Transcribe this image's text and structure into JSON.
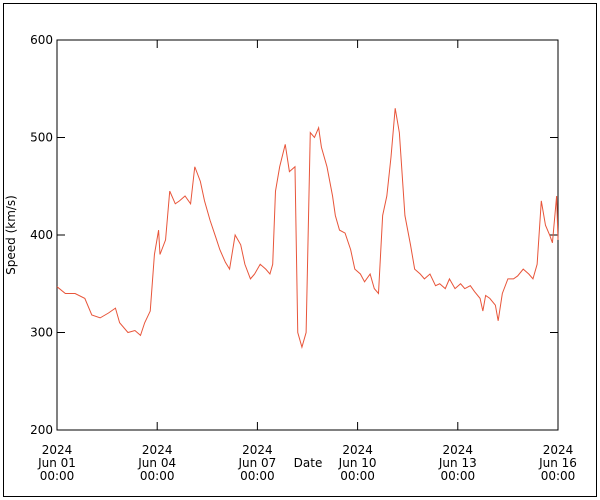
{
  "chart_data": {
    "type": "line",
    "xlabel": "Date",
    "ylabel": "Speed (km/s)",
    "xlim": [
      "2024-06-01T00:00",
      "2024-06-16T00:00"
    ],
    "xticks": [
      {
        "value": "2024-06-01T00:00",
        "label": [
          "2024",
          "Jun 01",
          "00:00"
        ]
      },
      {
        "value": "2024-06-04T00:00",
        "label": [
          "2024",
          "Jun 04",
          "00:00"
        ]
      },
      {
        "value": "2024-06-07T00:00",
        "label": [
          "2024",
          "Jun 07",
          "00:00"
        ]
      },
      {
        "value": "2024-06-10T00:00",
        "label": [
          "2024",
          "Jun 10",
          "00:00"
        ]
      },
      {
        "value": "2024-06-13T00:00",
        "label": [
          "2024",
          "Jun 13",
          "00:00"
        ]
      },
      {
        "value": "2024-06-16T00:00",
        "label": [
          "2024",
          "Jun 16",
          "00:00"
        ]
      }
    ],
    "ylim": [
      200,
      600
    ],
    "yticks": [
      200,
      300,
      400,
      500,
      600
    ],
    "color": "#e8553a",
    "x": [
      "2024-06-01T00:00",
      "2024-06-01T06:00",
      "2024-06-01T13:00",
      "2024-06-01T20:00",
      "2024-06-02T01:00",
      "2024-06-02T07:00",
      "2024-06-02T13:00",
      "2024-06-02T18:00",
      "2024-06-02T21:00",
      "2024-06-03T03:00",
      "2024-06-03T08:00",
      "2024-06-03T12:00",
      "2024-06-03T15:00",
      "2024-06-03T19:00",
      "2024-06-03T22:00",
      "2024-06-04T01:00",
      "2024-06-04T02:00",
      "2024-06-04T06:00",
      "2024-06-04T09:00",
      "2024-06-04T13:00",
      "2024-06-04T16:00",
      "2024-06-04T20:00",
      "2024-06-05T00:00",
      "2024-06-05T03:00",
      "2024-06-05T07:00",
      "2024-06-05T10:00",
      "2024-06-05T14:00",
      "2024-06-05T18:00",
      "2024-06-05T21:00",
      "2024-06-06T01:00",
      "2024-06-06T04:00",
      "2024-06-06T08:00",
      "2024-06-06T12:00",
      "2024-06-06T15:00",
      "2024-06-06T19:00",
      "2024-06-06T22:00",
      "2024-06-07T02:00",
      "2024-06-07T06:00",
      "2024-06-07T09:00",
      "2024-06-07T11:00",
      "2024-06-07T13:00",
      "2024-06-07T16:00",
      "2024-06-07T20:00",
      "2024-06-07T23:00",
      "2024-06-08T03:00",
      "2024-06-08T05:00",
      "2024-06-08T08:00",
      "2024-06-08T11:00",
      "2024-06-08T14:00",
      "2024-06-08T17:00",
      "2024-06-08T20:00",
      "2024-06-08T22:00",
      "2024-06-09T02:00",
      "2024-06-09T06:00",
      "2024-06-09T08:00",
      "2024-06-09T11:00",
      "2024-06-09T15:00",
      "2024-06-09T19:00",
      "2024-06-09T22:00",
      "2024-06-10T02:00",
      "2024-06-10T05:00",
      "2024-06-10T09:00",
      "2024-06-10T12:00",
      "2024-06-10T15:00",
      "2024-06-10T18:00",
      "2024-06-10T21:00",
      "2024-06-11T00:00",
      "2024-06-11T03:00",
      "2024-06-11T06:00",
      "2024-06-11T10:00",
      "2024-06-11T14:00",
      "2024-06-11T17:00",
      "2024-06-11T21:00",
      "2024-06-12T00:00",
      "2024-06-12T04:00",
      "2024-06-12T08:00",
      "2024-06-12T11:00",
      "2024-06-12T15:00",
      "2024-06-12T18:00",
      "2024-06-12T22:00",
      "2024-06-13T02:00",
      "2024-06-13T05:00",
      "2024-06-13T09:00",
      "2024-06-13T12:00",
      "2024-06-13T16:00",
      "2024-06-13T18:00",
      "2024-06-13T20:00",
      "2024-06-13T23:00",
      "2024-06-14T03:00",
      "2024-06-14T05:00",
      "2024-06-14T08:00",
      "2024-06-14T12:00",
      "2024-06-14T16:00",
      "2024-06-14T19:00",
      "2024-06-14T23:00",
      "2024-06-15T03:00",
      "2024-06-15T06:00",
      "2024-06-15T09:00",
      "2024-06-15T12:00",
      "2024-06-15T15:00",
      "2024-06-15T18:00",
      "2024-06-15T20:00",
      "2024-06-15T23:00",
      "2024-06-16T00:00"
    ],
    "values": [
      347,
      340,
      340,
      335,
      318,
      315,
      320,
      325,
      310,
      300,
      302,
      297,
      310,
      322,
      380,
      405,
      380,
      395,
      445,
      432,
      435,
      440,
      432,
      470,
      455,
      435,
      415,
      398,
      385,
      372,
      365,
      400,
      390,
      370,
      355,
      360,
      370,
      365,
      360,
      370,
      445,
      470,
      493,
      465,
      470,
      300,
      285,
      300,
      505,
      500,
      510,
      490,
      470,
      440,
      420,
      405,
      402,
      385,
      365,
      360,
      352,
      360,
      345,
      340,
      420,
      440,
      480,
      530,
      505,
      420,
      390,
      365,
      360,
      355,
      360,
      348,
      350,
      345,
      355,
      345,
      350,
      345,
      348,
      342,
      335,
      322,
      338,
      335,
      328,
      312,
      340,
      355,
      355,
      358,
      365,
      360,
      355,
      370,
      435,
      410,
      400,
      392,
      440,
      395
    ]
  }
}
